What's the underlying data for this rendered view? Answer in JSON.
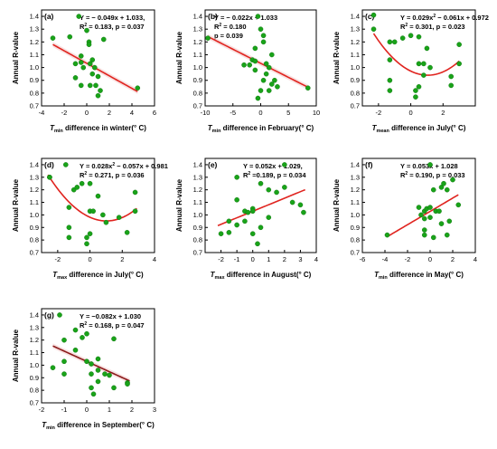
{
  "figure": {
    "y_axis_label": "Annual R-value",
    "y_ticks": [
      "0.7",
      "0.8",
      "0.9",
      "1.0",
      "1.1",
      "1.2",
      "1.3",
      "1.4"
    ]
  },
  "chart_data": [
    {
      "panel": "(a)",
      "type": "scatter",
      "xlabel_var": "T",
      "xlabel_sub": "min",
      "xlabel_rest": " difference in winter(° C)",
      "eq_lines": [
        {
          "text": "Y = − 0.049x + 1.033,"
        },
        {
          "pre": "R",
          "sup": "2",
          "post": " = 0.183, p = 0.037"
        }
      ],
      "xlim": [
        -4,
        6
      ],
      "x_ticks": [
        -4,
        -2,
        0,
        2,
        4,
        6
      ],
      "ylim": [
        0.7,
        1.45
      ],
      "points": [
        [
          -3,
          1.23
        ],
        [
          -1.5,
          1.24
        ],
        [
          -1,
          1.03
        ],
        [
          -0.5,
          1.09
        ],
        [
          -0.5,
          1.04
        ],
        [
          -0.3,
          1.0
        ],
        [
          0,
          1.29
        ],
        [
          0.2,
          1.2
        ],
        [
          0.2,
          1.18
        ],
        [
          0.5,
          1.06
        ],
        [
          0.3,
          1.03
        ],
        [
          0.5,
          0.95
        ],
        [
          1,
          0.93
        ],
        [
          0.8,
          0.86
        ],
        [
          1.5,
          1.22
        ],
        [
          -0.5,
          0.86
        ],
        [
          0.3,
          0.86
        ],
        [
          0.7,
          1.0
        ],
        [
          1.2,
          0.82
        ],
        [
          -0.7,
          1.4
        ],
        [
          4.5,
          0.84
        ],
        [
          -1,
          0.92
        ],
        [
          1,
          0.78
        ]
      ],
      "fit": {
        "kind": "linear",
        "a": -0.049,
        "b": 1.033,
        "x": [
          -3,
          4.5
        ]
      }
    },
    {
      "panel": "(b)",
      "type": "scatter",
      "xlabel_var": "T",
      "xlabel_sub": "min",
      "xlabel_rest": " difference in February(° C)",
      "eq_lines": [
        {
          "text": "Y = − 0.022x + 1.033"
        },
        {
          "pre": "R",
          "sup": "2",
          "post": " = 0.180"
        },
        {
          "text": "p = 0.039"
        }
      ],
      "xlim": [
        -10,
        10
      ],
      "x_ticks": [
        -10,
        -5,
        0,
        5,
        10
      ],
      "ylim": [
        0.7,
        1.45
      ],
      "points": [
        [
          -9.5,
          1.23
        ],
        [
          -3,
          1.02
        ],
        [
          -1.5,
          1.06
        ],
        [
          -1,
          1.05
        ],
        [
          -1,
          1.15
        ],
        [
          0,
          1.3
        ],
        [
          0.5,
          1.25
        ],
        [
          0.5,
          1.2
        ],
        [
          1,
          1.03
        ],
        [
          1,
          0.95
        ],
        [
          1.5,
          1.0
        ],
        [
          2,
          1.1
        ],
        [
          2.5,
          0.9
        ],
        [
          2,
          0.87
        ],
        [
          3,
          0.85
        ],
        [
          0,
          0.82
        ],
        [
          -1,
          0.98
        ],
        [
          1.5,
          0.82
        ],
        [
          -0.5,
          0.76
        ],
        [
          8.5,
          0.84
        ],
        [
          -0.5,
          1.4
        ],
        [
          -2,
          1.02
        ],
        [
          0.5,
          0.9
        ]
      ],
      "fit": {
        "kind": "linear",
        "a": -0.022,
        "b": 1.033,
        "x": [
          -9.5,
          8.5
        ]
      }
    },
    {
      "panel": "(c)",
      "type": "scatter",
      "xlabel_var": "T",
      "xlabel_sub": "mean",
      "xlabel_rest": " difference in July(° C)",
      "eq_lines": [
        {
          "pre": "Y = 0.029x",
          "sup": "2",
          "post": " − 0.061x + 0.972"
        },
        {
          "pre": "R",
          "sup": "2",
          "post": " = 0.301, p = 0.023"
        }
      ],
      "xlim": [
        -3,
        4
      ],
      "x_ticks": [
        -2,
        0,
        2
      ],
      "ylim": [
        0.7,
        1.45
      ],
      "points": [
        [
          -2.3,
          1.41
        ],
        [
          -2.3,
          1.3
        ],
        [
          -1.3,
          1.2
        ],
        [
          -1.3,
          1.06
        ],
        [
          -1,
          1.2
        ],
        [
          -0.5,
          1.23
        ],
        [
          0,
          1.25
        ],
        [
          0.5,
          1.03
        ],
        [
          0.5,
          1.24
        ],
        [
          0.8,
          1.03
        ],
        [
          1,
          1.15
        ],
        [
          1.2,
          1.0
        ],
        [
          0.5,
          0.85
        ],
        [
          0.3,
          0.82
        ],
        [
          0.3,
          0.77
        ],
        [
          -1.3,
          0.9
        ],
        [
          -1.3,
          0.82
        ],
        [
          2.5,
          0.86
        ],
        [
          3,
          1.18
        ],
        [
          3,
          1.03
        ],
        [
          0.8,
          0.94
        ],
        [
          2.5,
          0.93
        ]
      ],
      "fit": {
        "kind": "quadratic",
        "a": 0.029,
        "b": -0.061,
        "c": 0.972,
        "x": [
          -2.3,
          3.0
        ]
      }
    },
    {
      "panel": "(d)",
      "type": "scatter",
      "xlabel_var": "T",
      "xlabel_sub": "max",
      "xlabel_rest": " difference in July(° C)",
      "eq_lines": [
        {
          "pre": "Y = 0.028x",
          "sup": "2",
          "post": " − 0.057x + 0.981"
        },
        {
          "pre": "R",
          "sup": "2",
          "post": " = 0.271, p = 0.036"
        }
      ],
      "xlim": [
        -3,
        4
      ],
      "x_ticks": [
        -2,
        0,
        2,
        4
      ],
      "ylim": [
        0.7,
        1.45
      ],
      "points": [
        [
          -2.5,
          1.3
        ],
        [
          -2.5,
          1.3
        ],
        [
          -1.5,
          1.4
        ],
        [
          -1.3,
          1.06
        ],
        [
          -1,
          1.2
        ],
        [
          -0.8,
          1.22
        ],
        [
          -0.5,
          1.25
        ],
        [
          0,
          1.03
        ],
        [
          0,
          1.25
        ],
        [
          0.2,
          1.03
        ],
        [
          0.5,
          1.15
        ],
        [
          0.8,
          1.0
        ],
        [
          0,
          0.85
        ],
        [
          -0.2,
          0.82
        ],
        [
          -0.2,
          0.77
        ],
        [
          -1.3,
          0.9
        ],
        [
          -1.3,
          0.82
        ],
        [
          2.3,
          0.86
        ],
        [
          2.8,
          1.18
        ],
        [
          2.8,
          1.03
        ],
        [
          1,
          0.94
        ],
        [
          1.8,
          0.98
        ]
      ],
      "fit": {
        "kind": "quadratic",
        "a": 0.028,
        "b": -0.057,
        "c": 0.981,
        "x": [
          -2.6,
          2.9
        ]
      }
    },
    {
      "panel": "(e)",
      "type": "scatter",
      "xlabel_var": "T",
      "xlabel_sub": "max",
      "xlabel_rest": " difference in August(° C)",
      "eq_lines": [
        {
          "text": "Y = 0.052x + 1.029,"
        },
        {
          "pre": "R",
          "sup": "2",
          "post": " =0.189, p = 0.034"
        }
      ],
      "xlim": [
        -3,
        4
      ],
      "x_ticks": [
        -2,
        -1,
        0,
        1,
        2,
        3,
        4
      ],
      "ylim": [
        0.7,
        1.45
      ],
      "points": [
        [
          -2,
          0.85
        ],
        [
          -1.5,
          0.86
        ],
        [
          -1,
          1.3
        ],
        [
          -1,
          1.12
        ],
        [
          -0.5,
          1.03
        ],
        [
          -0.3,
          1.02
        ],
        [
          0,
          1.05
        ],
        [
          0,
          1.03
        ],
        [
          0.5,
          1.25
        ],
        [
          1,
          1.2
        ],
        [
          1.5,
          1.18
        ],
        [
          1,
          0.98
        ],
        [
          0.3,
          0.77
        ],
        [
          -1,
          0.92
        ],
        [
          -0.5,
          0.95
        ],
        [
          0,
          0.85
        ],
        [
          2,
          1.4
        ],
        [
          2,
          1.22
        ],
        [
          3,
          1.08
        ],
        [
          3.2,
          1.02
        ],
        [
          -1.5,
          0.95
        ],
        [
          0.5,
          0.9
        ],
        [
          2.5,
          1.1
        ]
      ],
      "fit": {
        "kind": "linear",
        "a": 0.052,
        "b": 1.029,
        "x": [
          -2.2,
          3.3
        ]
      }
    },
    {
      "panel": "(f)",
      "type": "scatter",
      "xlabel_var": "T",
      "xlabel_sub": "min",
      "xlabel_rest": " difference in May(° C)",
      "eq_lines": [
        {
          "text": "Y = 0.053x + 1.028"
        },
        {
          "pre": "R",
          "sup": "2",
          "post": " = 0.190, p = 0.033"
        }
      ],
      "xlim": [
        -6,
        4
      ],
      "x_ticks": [
        -6,
        -4,
        -2,
        0,
        2,
        4
      ],
      "ylim": [
        0.7,
        1.45
      ],
      "points": [
        [
          -3.8,
          0.84
        ],
        [
          -1,
          1.06
        ],
        [
          -0.8,
          1.0
        ],
        [
          -0.5,
          0.97
        ],
        [
          -0.5,
          1.03
        ],
        [
          -0.3,
          1.05
        ],
        [
          0,
          1.4
        ],
        [
          0,
          1.06
        ],
        [
          0,
          0.98
        ],
        [
          0.3,
          1.2
        ],
        [
          0.5,
          1.03
        ],
        [
          0.8,
          1.03
        ],
        [
          1,
          1.22
        ],
        [
          1,
          0.93
        ],
        [
          1.2,
          1.25
        ],
        [
          1.5,
          1.2
        ],
        [
          1.7,
          0.95
        ],
        [
          2,
          1.28
        ],
        [
          2.5,
          1.08
        ],
        [
          -0.5,
          0.88
        ],
        [
          0.3,
          0.82
        ],
        [
          -0.5,
          0.84
        ],
        [
          1.5,
          0.84
        ]
      ],
      "fit": {
        "kind": "linear",
        "a": 0.053,
        "b": 1.028,
        "x": [
          -3.8,
          2.5
        ]
      }
    },
    {
      "panel": "(g)",
      "type": "scatter",
      "xlabel_var": "T",
      "xlabel_sub": "min",
      "xlabel_rest": " difference in September(° C)",
      "eq_lines": [
        {
          "text": "Y = −0.082x + 1.030"
        },
        {
          "pre": "R",
          "sup": "2",
          "post": " = 0.168, p = 0.047"
        }
      ],
      "xlim": [
        -2,
        3
      ],
      "x_ticks": [
        -2,
        -1,
        0,
        1,
        2,
        3
      ],
      "ylim": [
        0.7,
        1.45
      ],
      "points": [
        [
          -1.5,
          0.98
        ],
        [
          -1.2,
          1.4
        ],
        [
          -1,
          1.2
        ],
        [
          -1,
          1.03
        ],
        [
          -0.5,
          1.28
        ],
        [
          -0.5,
          1.12
        ],
        [
          -0.2,
          1.22
        ],
        [
          0,
          1.25
        ],
        [
          0,
          1.03
        ],
        [
          0.2,
          0.93
        ],
        [
          0.5,
          1.05
        ],
        [
          0.5,
          0.96
        ],
        [
          0.8,
          0.93
        ],
        [
          1,
          0.92
        ],
        [
          1.2,
          1.21
        ],
        [
          1.2,
          0.82
        ],
        [
          0.2,
          0.82
        ],
        [
          0.3,
          0.77
        ],
        [
          0.5,
          0.87
        ],
        [
          1.8,
          0.86
        ],
        [
          1.8,
          0.85
        ],
        [
          -1,
          0.93
        ],
        [
          0.2,
          1.01
        ]
      ],
      "fit": {
        "kind": "linear",
        "a": -0.082,
        "b": 1.03,
        "x": [
          -1.5,
          1.9
        ]
      }
    }
  ]
}
